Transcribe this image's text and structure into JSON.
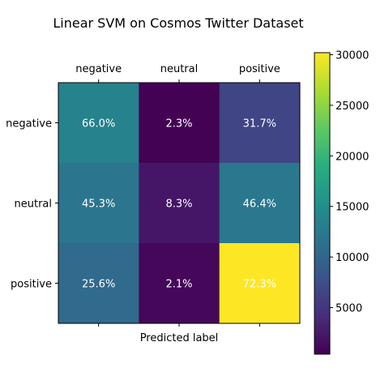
{
  "chart_data": {
    "type": "heatmap",
    "title": "Linear SVM on Cosmos Twitter Dataset",
    "xlabel": "Predicted label",
    "ylabel": "",
    "x_categories": [
      "negative",
      "neutral",
      "positive"
    ],
    "y_categories": [
      "negative",
      "neutral",
      "positive"
    ],
    "cell_labels": [
      [
        "66.0%",
        "2.3%",
        "31.7%"
      ],
      [
        "45.3%",
        "8.3%",
        "46.4%"
      ],
      [
        "25.6%",
        "2.1%",
        "72.3%"
      ]
    ],
    "values": [
      [
        13500,
        500,
        6500
      ],
      [
        12000,
        2200,
        12300
      ],
      [
        10700,
        900,
        30200
      ]
    ],
    "colormap": "viridis",
    "colorbar": {
      "range": [
        400,
        30200
      ],
      "ticks": [
        5000,
        10000,
        15000,
        20000,
        25000,
        30000
      ],
      "tick_labels": [
        "5000",
        "10000",
        "15000",
        "20000",
        "25000",
        "30000"
      ]
    },
    "x_tick_position": "top",
    "grid": false
  }
}
